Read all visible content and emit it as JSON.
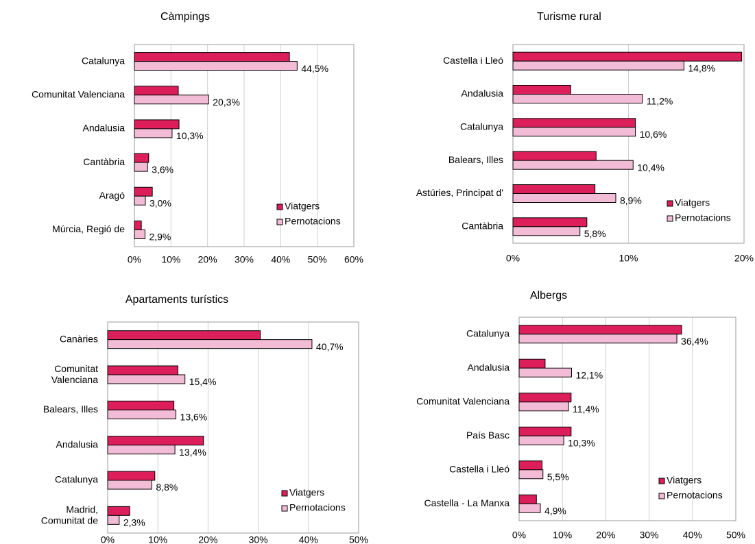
{
  "chart_data": [
    {
      "type": "bar",
      "orientation": "horizontal",
      "title": "Càmpings",
      "categories": [
        "Catalunya",
        "Comunitat Valenciana",
        "Andalusia",
        "Cantàbria",
        "Aragó",
        "Múrcia, Regió de"
      ],
      "series": [
        {
          "name": "Viatgers",
          "color": "#dc1f5a",
          "values": [
            42.4,
            12.0,
            12.2,
            3.9,
            4.9,
            1.9
          ]
        },
        {
          "name": "Pernotacions",
          "color": "#f3bcd6",
          "values": [
            44.5,
            20.3,
            10.3,
            3.6,
            3.0,
            2.9
          ],
          "value_labels": [
            "44,5%",
            "20,3%",
            "10,3%",
            "3,6%",
            "3,0%",
            "2,9%"
          ]
        }
      ],
      "xlim": [
        0,
        60
      ],
      "xticks": [
        {
          "value": 0,
          "label": "0%"
        },
        {
          "value": 10,
          "label": "10%"
        },
        {
          "value": 20,
          "label": "20%"
        },
        {
          "value": 30,
          "label": "30%"
        },
        {
          "value": 40,
          "label": "40%"
        },
        {
          "value": 50,
          "label": "50%"
        },
        {
          "value": 60,
          "label": "60%"
        }
      ],
      "grid": true,
      "legend": "lower right"
    },
    {
      "type": "bar",
      "orientation": "horizontal",
      "title": "Turisme  rural",
      "categories": [
        "Castella i Lleó",
        "Andalusia",
        "Catalunya",
        "Balears, Illes",
        "Astúries, Principat d'",
        "Cantàbria"
      ],
      "series": [
        {
          "name": "Viatgers",
          "color": "#dc1f5a",
          "values": [
            19.8,
            5.0,
            10.6,
            7.2,
            7.1,
            6.4
          ]
        },
        {
          "name": "Pernotacions",
          "color": "#f3bcd6",
          "values": [
            14.8,
            11.2,
            10.6,
            10.4,
            8.9,
            5.8
          ],
          "value_labels": [
            "14,8%",
            "11,2%",
            "10,6%",
            "10,4%",
            "8,9%",
            "5,8%"
          ]
        }
      ],
      "xlim": [
        0,
        20
      ],
      "xticks": [
        {
          "value": 0,
          "label": "0%"
        },
        {
          "value": 10,
          "label": "10%"
        },
        {
          "value": 20,
          "label": "20%"
        }
      ],
      "grid": true,
      "legend": "lower right"
    },
    {
      "type": "bar",
      "orientation": "horizontal",
      "title": "Apartaments turístics",
      "categories": [
        "Canàries",
        "Comunitat\nValenciana",
        "Balears, Illes",
        "Andalusia",
        "Catalunya",
        "Madrid,\nComunitat de"
      ],
      "series": [
        {
          "name": "Viatgers",
          "color": "#dc1f5a",
          "values": [
            30.4,
            14.0,
            13.2,
            19.1,
            9.4,
            4.4
          ]
        },
        {
          "name": "Pernotacions",
          "color": "#f3bcd6",
          "values": [
            40.7,
            15.4,
            13.6,
            13.4,
            8.8,
            2.3
          ],
          "value_labels": [
            "40,7%",
            "15,4%",
            "13,6%",
            "13,4%",
            "8,8%",
            "2,3%"
          ]
        }
      ],
      "xlim": [
        0,
        50
      ],
      "xticks": [
        {
          "value": 0,
          "label": "0%"
        },
        {
          "value": 10,
          "label": "10%"
        },
        {
          "value": 20,
          "label": "20%"
        },
        {
          "value": 30,
          "label": "30%"
        },
        {
          "value": 40,
          "label": "40%"
        },
        {
          "value": 50,
          "label": "50%"
        }
      ],
      "grid": true,
      "legend": "lower right"
    },
    {
      "type": "bar",
      "orientation": "horizontal",
      "title": "Albergs",
      "categories": [
        "Catalunya",
        "Andalusia",
        "Comunitat Valenciana",
        "País Basc",
        "Castella i Lleó",
        "Castella - La Manxa"
      ],
      "series": [
        {
          "name": "Viatgers",
          "color": "#dc1f5a",
          "values": [
            37.5,
            6.0,
            12.0,
            12.0,
            5.3,
            4.0
          ]
        },
        {
          "name": "Pernotacions",
          "color": "#f3bcd6",
          "values": [
            36.4,
            12.1,
            11.4,
            10.3,
            5.5,
            4.9
          ],
          "value_labels": [
            "36,4%",
            "12,1%",
            "11,4%",
            "10,3%",
            "5,5%",
            "4,9%"
          ]
        }
      ],
      "xlim": [
        0,
        50
      ],
      "xticks": [
        {
          "value": 0,
          "label": "0%"
        },
        {
          "value": 10,
          "label": "10%"
        },
        {
          "value": 20,
          "label": "20%"
        },
        {
          "value": 30,
          "label": "30%"
        },
        {
          "value": 40,
          "label": "40%"
        },
        {
          "value": 50,
          "label": "50%"
        }
      ],
      "grid": true,
      "legend": "lower right"
    }
  ]
}
